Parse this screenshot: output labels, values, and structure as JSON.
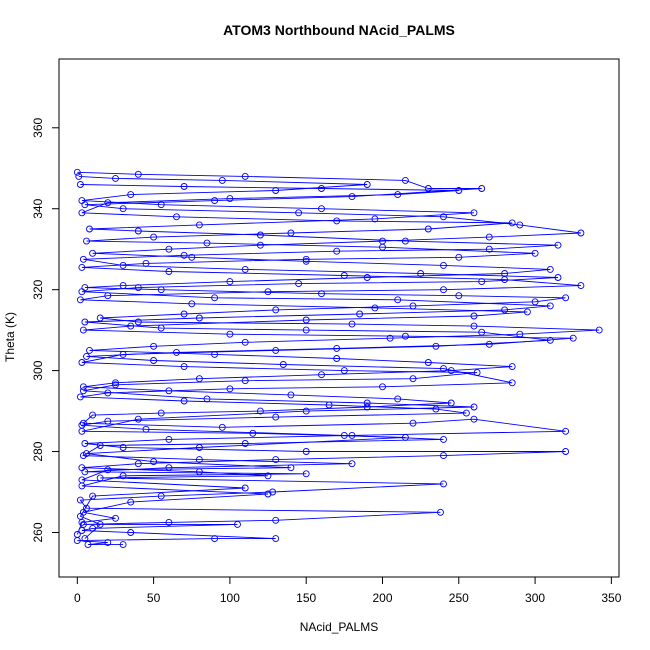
{
  "chart_data": {
    "type": "line",
    "title": "ATOM3 Northbound NAcid_PALMS",
    "xlabel": "NAcid_PALMS",
    "ylabel": "Theta (K)",
    "xlim": [
      -12,
      355
    ],
    "ylim": [
      249,
      377
    ],
    "x_ticks": [
      0,
      50,
      100,
      150,
      200,
      250,
      300,
      350
    ],
    "y_ticks": [
      260,
      280,
      300,
      320,
      340,
      360
    ],
    "x_tick_labels": [
      "0",
      "50",
      "100",
      "150",
      "200",
      "250",
      "300",
      "350"
    ],
    "y_tick_labels": [
      "260",
      "280",
      "300",
      "320",
      "340",
      "360"
    ],
    "grid": false,
    "series_color": "#0000ff",
    "marker": "open-circle",
    "series": [
      {
        "values": [
          [
            0,
            349
          ],
          [
            40,
            348.5
          ],
          [
            110,
            348
          ],
          [
            215,
            347
          ],
          [
            230,
            345
          ],
          [
            265,
            345
          ],
          [
            180,
            343
          ],
          [
            90,
            342
          ],
          [
            5,
            341
          ],
          [
            30,
            340
          ],
          [
            145,
            339
          ],
          [
            240,
            338
          ],
          [
            290,
            336
          ],
          [
            330,
            334
          ],
          [
            270,
            333
          ],
          [
            200,
            332
          ],
          [
            120,
            331
          ],
          [
            60,
            330
          ],
          [
            10,
            329
          ],
          [
            75,
            328
          ],
          [
            150,
            327
          ],
          [
            240,
            326
          ],
          [
            310,
            325
          ],
          [
            280,
            324
          ],
          [
            190,
            323
          ],
          [
            100,
            322
          ],
          [
            30,
            321
          ],
          [
            5,
            320.5
          ],
          [
            55,
            320
          ],
          [
            160,
            319
          ],
          [
            250,
            318.5
          ],
          [
            320,
            318
          ],
          [
            300,
            317
          ],
          [
            220,
            316
          ],
          [
            130,
            315
          ],
          [
            70,
            314
          ],
          [
            15,
            313
          ],
          [
            40,
            312
          ],
          [
            180,
            311.5
          ],
          [
            260,
            311
          ],
          [
            342,
            310
          ],
          [
            290,
            309
          ],
          [
            205,
            308
          ],
          [
            110,
            307
          ],
          [
            50,
            306
          ],
          [
            8,
            305
          ],
          [
            90,
            304
          ],
          [
            170,
            303
          ],
          [
            230,
            302
          ],
          [
            285,
            301
          ],
          [
            245,
            300
          ],
          [
            160,
            299
          ],
          [
            80,
            298
          ],
          [
            25,
            297
          ],
          [
            4,
            296
          ],
          [
            60,
            295
          ],
          [
            140,
            294
          ],
          [
            210,
            293
          ],
          [
            245,
            292
          ],
          [
            190,
            291
          ],
          [
            120,
            290
          ],
          [
            55,
            289.5
          ],
          [
            10,
            289
          ],
          [
            4,
            287
          ],
          [
            95,
            286
          ],
          [
            220,
            287
          ],
          [
            260,
            288
          ],
          [
            320,
            285
          ],
          [
            180,
            284
          ],
          [
            60,
            283
          ],
          [
            5,
            282
          ],
          [
            30,
            281
          ],
          [
            150,
            280
          ],
          [
            320,
            280
          ],
          [
            240,
            279
          ],
          [
            130,
            278
          ],
          [
            40,
            277
          ],
          [
            3,
            276
          ],
          [
            80,
            275
          ],
          [
            125,
            274
          ],
          [
            15,
            273.5
          ],
          [
            240,
            272
          ],
          [
            128,
            270
          ],
          [
            55,
            269
          ],
          [
            2,
            268
          ],
          [
            6,
            266
          ],
          [
            238,
            265
          ],
          [
            130,
            263
          ],
          [
            60,
            262.5
          ],
          [
            4,
            262
          ],
          [
            105,
            262
          ],
          [
            10,
            261
          ],
          [
            3,
            260.5
          ],
          [
            35,
            260
          ],
          [
            130,
            258.5
          ],
          [
            90,
            258.5
          ],
          [
            0,
            258
          ],
          [
            20,
            257.5
          ],
          [
            7,
            257
          ],
          [
            30,
            257
          ]
        ]
      },
      {
        "values": [
          [
            2,
            346
          ],
          [
            70,
            345.5
          ],
          [
            160,
            345
          ],
          [
            250,
            344.5
          ],
          [
            210,
            343.5
          ],
          [
            100,
            342.5
          ],
          [
            20,
            341.5
          ],
          [
            3,
            339
          ],
          [
            65,
            338
          ],
          [
            170,
            337
          ],
          [
            285,
            336.5
          ],
          [
            230,
            335
          ],
          [
            140,
            334
          ],
          [
            50,
            333
          ],
          [
            6,
            332
          ],
          [
            85,
            331.5
          ],
          [
            200,
            330.5
          ],
          [
            300,
            329
          ],
          [
            250,
            328
          ],
          [
            150,
            327.5
          ],
          [
            45,
            326.5
          ],
          [
            3,
            325.5
          ],
          [
            60,
            324.5
          ],
          [
            175,
            323.5
          ],
          [
            280,
            322.5
          ],
          [
            330,
            321
          ],
          [
            240,
            320
          ],
          [
            125,
            319.5
          ],
          [
            20,
            318.5
          ],
          [
            2,
            317.5
          ],
          [
            75,
            316.5
          ],
          [
            195,
            315.5
          ],
          [
            295,
            314.5
          ],
          [
            260,
            313.5
          ],
          [
            150,
            312.5
          ],
          [
            35,
            311
          ],
          [
            4,
            310
          ],
          [
            100,
            309
          ],
          [
            215,
            308.5
          ],
          [
            325,
            308
          ],
          [
            270,
            306.5
          ],
          [
            170,
            305.5
          ],
          [
            65,
            304.5
          ],
          [
            6,
            303.5
          ],
          [
            50,
            302.5
          ],
          [
            135,
            301.5
          ],
          [
            240,
            300.5
          ],
          [
            285,
            297
          ],
          [
            200,
            296
          ],
          [
            100,
            295.5
          ],
          [
            20,
            294.5
          ],
          [
            2,
            293.5
          ],
          [
            70,
            292.5
          ],
          [
            165,
            291.5
          ],
          [
            235,
            290.5
          ],
          [
            255,
            289.5
          ],
          [
            130,
            288.5
          ],
          [
            20,
            287.5
          ],
          [
            3,
            286.5
          ],
          [
            45,
            285.5
          ],
          [
            175,
            284
          ],
          [
            240,
            283
          ],
          [
            110,
            282
          ],
          [
            15,
            281.5
          ],
          [
            4,
            279
          ],
          [
            80,
            278
          ],
          [
            180,
            277
          ],
          [
            60,
            276
          ],
          [
            5,
            275
          ],
          [
            150,
            274.5
          ],
          [
            30,
            274
          ],
          [
            3,
            271.5
          ],
          [
            125,
            269.5
          ],
          [
            35,
            267.5
          ],
          [
            4,
            265
          ],
          [
            25,
            263.5
          ],
          [
            3,
            262.5
          ],
          [
            0,
            259.5
          ]
        ]
      },
      {
        "values": [
          [
            1,
            348
          ],
          [
            25,
            347.5
          ],
          [
            95,
            347
          ],
          [
            190,
            346
          ],
          [
            130,
            344.5
          ],
          [
            35,
            343.5
          ],
          [
            3,
            342
          ],
          [
            55,
            341
          ],
          [
            160,
            340
          ],
          [
            260,
            339
          ],
          [
            195,
            337.5
          ],
          [
            80,
            336
          ],
          [
            8,
            335
          ],
          [
            40,
            334.5
          ],
          [
            120,
            333.5
          ],
          [
            215,
            332
          ],
          [
            315,
            331
          ],
          [
            270,
            330
          ],
          [
            170,
            329.5
          ],
          [
            70,
            328.5
          ],
          [
            4,
            327.5
          ],
          [
            30,
            326
          ],
          [
            110,
            325
          ],
          [
            225,
            324
          ],
          [
            315,
            323
          ],
          [
            265,
            322
          ],
          [
            145,
            321.5
          ],
          [
            40,
            320.5
          ],
          [
            3,
            319.5
          ],
          [
            90,
            318
          ],
          [
            210,
            317.5
          ],
          [
            310,
            316
          ],
          [
            280,
            315
          ],
          [
            185,
            314
          ],
          [
            80,
            313
          ],
          [
            5,
            312
          ],
          [
            55,
            310.5
          ],
          [
            150,
            310
          ],
          [
            265,
            309.5
          ],
          [
            310,
            307.5
          ],
          [
            235,
            306
          ],
          [
            130,
            305
          ],
          [
            30,
            304
          ],
          [
            3,
            302
          ],
          [
            70,
            301
          ],
          [
            175,
            300
          ],
          [
            262,
            299.5
          ],
          [
            220,
            298
          ],
          [
            110,
            297.5
          ],
          [
            25,
            296.5
          ],
          [
            4,
            295
          ],
          [
            85,
            293
          ],
          [
            190,
            292
          ],
          [
            260,
            291
          ],
          [
            150,
            290
          ],
          [
            40,
            288
          ],
          [
            3,
            285
          ],
          [
            115,
            284.5
          ],
          [
            215,
            283.5
          ],
          [
            80,
            281
          ],
          [
            6,
            279.5
          ],
          [
            50,
            277.5
          ],
          [
            140,
            276
          ],
          [
            20,
            275.5
          ],
          [
            3,
            273
          ],
          [
            110,
            271
          ],
          [
            10,
            269
          ],
          [
            2,
            264
          ],
          [
            15,
            262
          ],
          [
            5,
            258.5
          ]
        ]
      }
    ]
  }
}
